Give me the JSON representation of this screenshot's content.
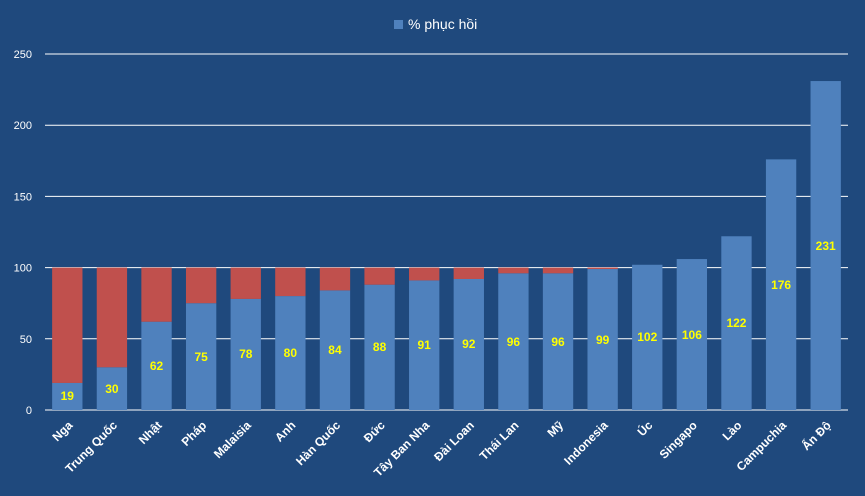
{
  "chart_data": {
    "type": "bar",
    "legend": {
      "label": "% phục hồi",
      "position": "top"
    },
    "categories": [
      "Nga",
      "Trung Quốc",
      "Nhật",
      "Pháp",
      "Malaisia",
      "Anh",
      "Hàn Quốc",
      "Đức",
      "Tây Ban Nha",
      "Đài Loan",
      "Thái Lan",
      "Mỹ",
      "Indonesia",
      "Úc",
      "Singapo",
      "Lào",
      "Campuchia",
      "Ấn Độ"
    ],
    "values": [
      19,
      30,
      62,
      75,
      78,
      80,
      84,
      88,
      91,
      92,
      96,
      96,
      99,
      102,
      106,
      122,
      176,
      231
    ],
    "baseline": 100,
    "ylim": [
      0,
      250
    ],
    "yticks": [
      "0",
      "50",
      "100",
      "150",
      "200",
      "250"
    ],
    "grid": true,
    "colors": {
      "background": "#1f497d",
      "recovered": "#4f81bd",
      "shortfall": "#c0504d",
      "data_label": "#ffff00",
      "gridline": "#ffffff"
    }
  }
}
